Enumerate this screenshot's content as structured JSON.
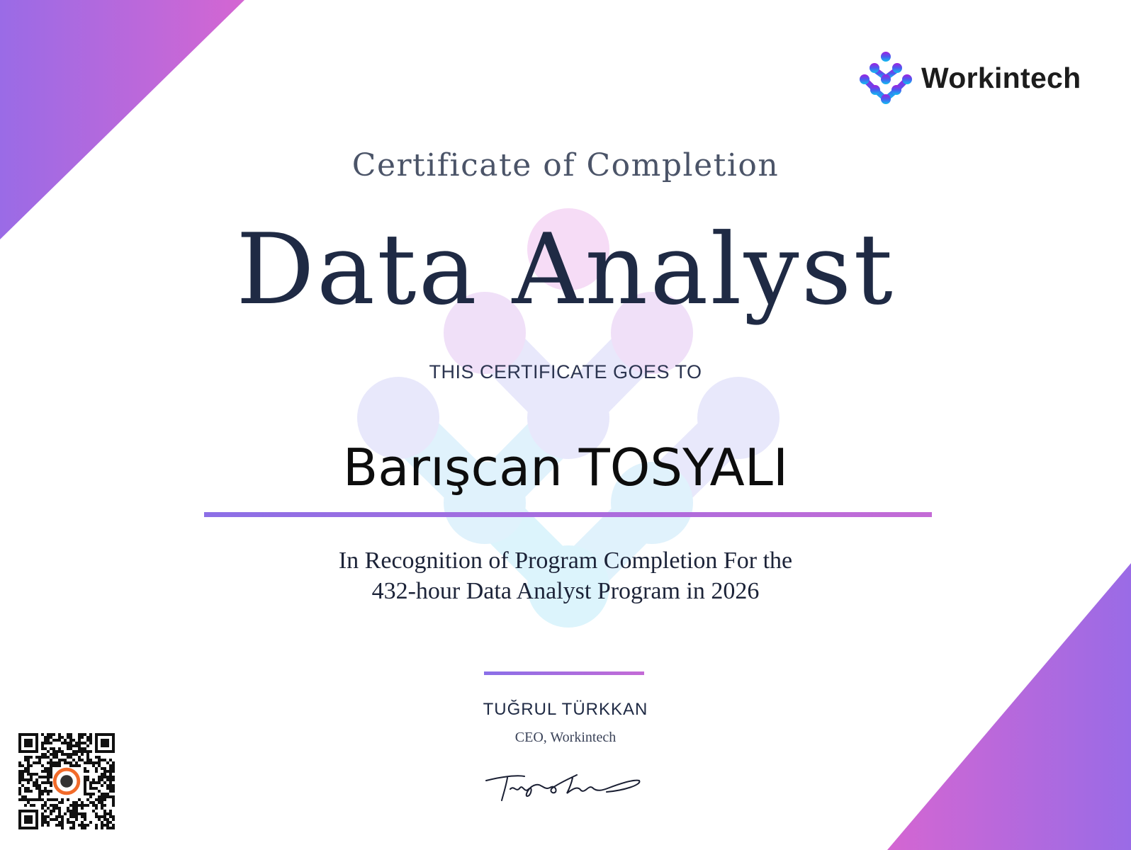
{
  "brand": {
    "name": "Workintech",
    "logo_icon": "workintech-dots-logo"
  },
  "certificate": {
    "heading": "Certificate of Completion",
    "program": "Data Analyst",
    "goes_to": "THIS CERTIFICATE GOES TO",
    "recipient": "Barışcan TOSYALI",
    "recognition_line1": "In Recognition of Program Completion For the",
    "recognition_line2": "432-hour Data Analyst Program in 2026"
  },
  "signer": {
    "name": "TUĞRUL TÜRKKAN",
    "role": "CEO, Workintech"
  },
  "qr": {
    "icon": "qr-code",
    "center_icon": "mascot-badge"
  },
  "colors": {
    "accent_purple": "#8c6fe6",
    "accent_pink": "#c46bd6",
    "text_dark": "#1f2a44",
    "qr_badge": "#f26b2a"
  }
}
